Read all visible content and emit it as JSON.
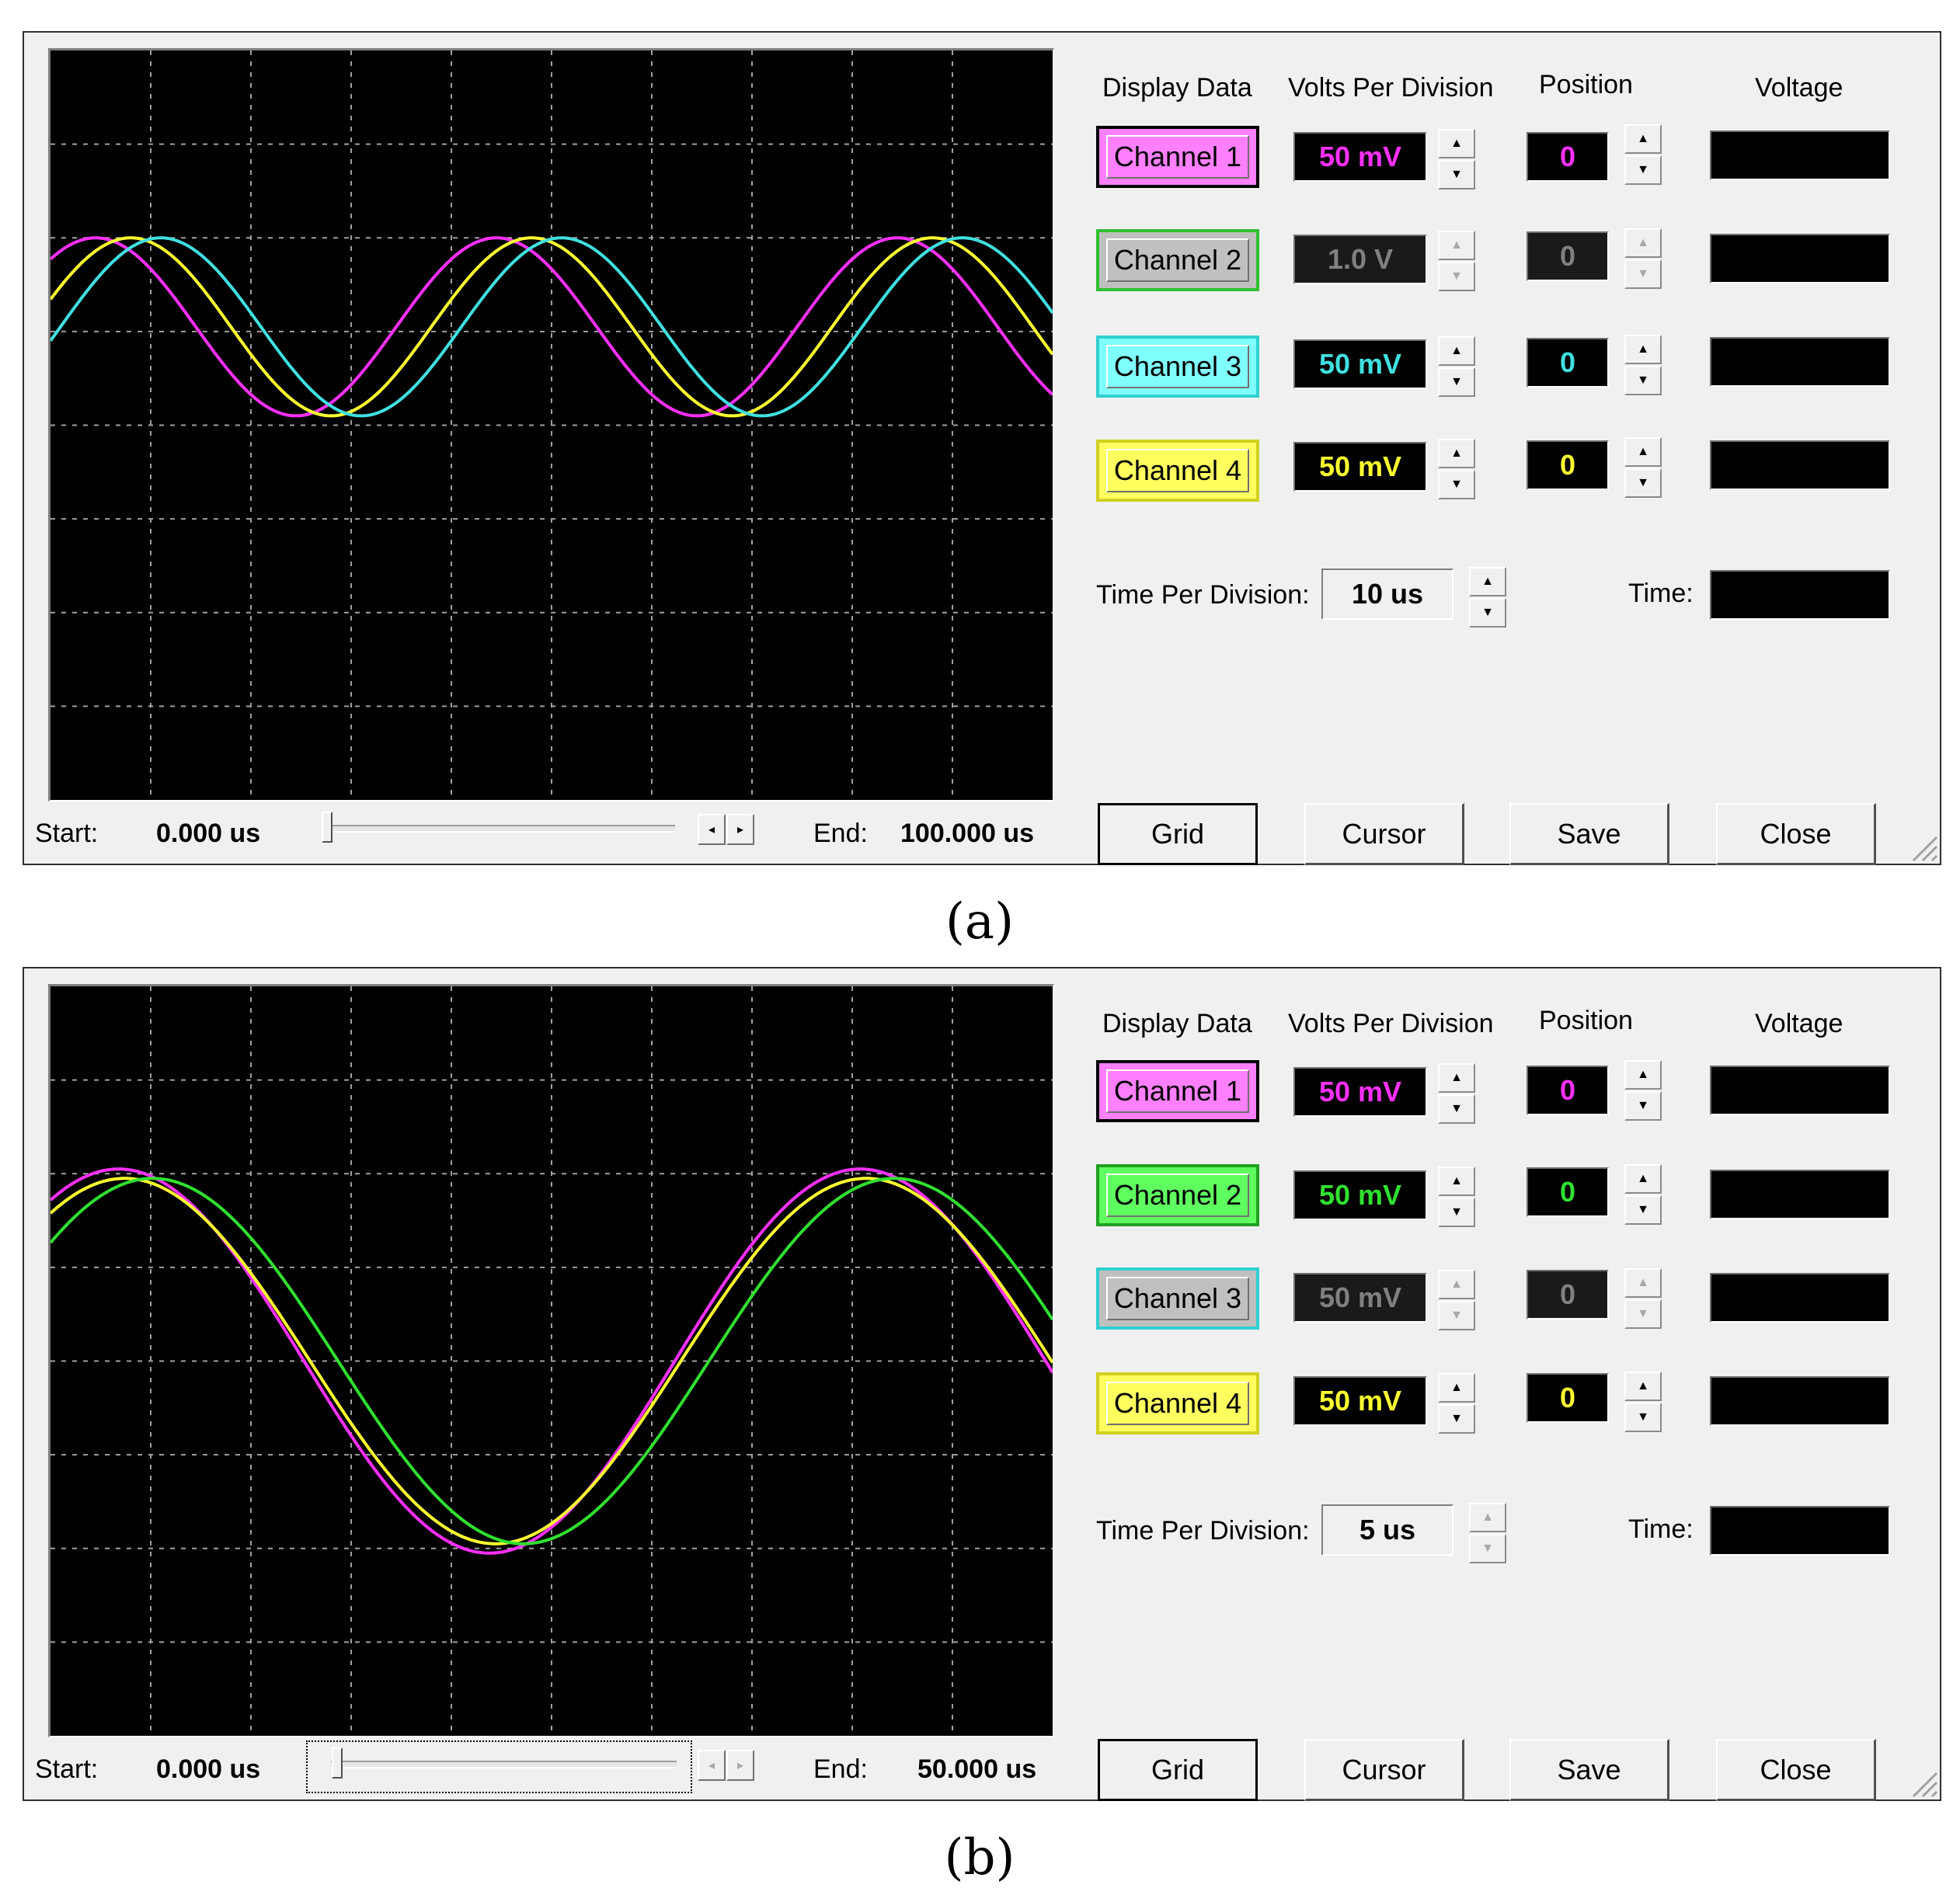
{
  "panels": [
    {
      "caption": "(a)",
      "headers": {
        "display": "Display Data",
        "vpd": "Volts Per Division",
        "position": "Position",
        "voltage": "Voltage"
      },
      "channels": [
        {
          "label": "Channel 1",
          "vpd": "50 mV",
          "position": "0",
          "enabled": true,
          "color": "#ff30ff",
          "btn_bg": "#ff80ff"
        },
        {
          "label": "Channel 2",
          "vpd": "1.0 V",
          "position": "0",
          "enabled": false,
          "color": "#30e030",
          "btn_bg": "#c0c0c0"
        },
        {
          "label": "Channel 3",
          "vpd": "50 mV",
          "position": "0",
          "enabled": true,
          "color": "#40e0e0",
          "btn_bg": "#80ffff"
        },
        {
          "label": "Channel 4",
          "vpd": "50 mV",
          "position": "0",
          "enabled": true,
          "color": "#ffff30",
          "btn_bg": "#ffff60"
        }
      ],
      "time_per_division_label": "Time Per Division:",
      "time_per_division": "10 us",
      "time_label": "Time:",
      "start_label": "Start:",
      "start_value": "0.000 us",
      "end_label": "End:",
      "end_value": "100.000 us",
      "buttons": [
        "Grid",
        "Cursor",
        "Save",
        "Close"
      ]
    },
    {
      "caption": "(b)",
      "headers": {
        "display": "Display Data",
        "vpd": "Volts Per Division",
        "position": "Position",
        "voltage": "Voltage"
      },
      "channels": [
        {
          "label": "Channel 1",
          "vpd": "50 mV",
          "position": "0",
          "enabled": true,
          "color": "#ff30ff",
          "btn_bg": "#ff80ff"
        },
        {
          "label": "Channel 2",
          "vpd": "50 mV",
          "position": "0",
          "enabled": true,
          "color": "#30e030",
          "btn_bg": "#60ff60"
        },
        {
          "label": "Channel 3",
          "vpd": "50 mV",
          "position": "0",
          "enabled": false,
          "color": "#40e0e0",
          "btn_bg": "#c0c0c0"
        },
        {
          "label": "Channel 4",
          "vpd": "50 mV",
          "position": "0",
          "enabled": true,
          "color": "#ffff30",
          "btn_bg": "#ffff60"
        }
      ],
      "time_per_division_label": "Time Per Division:",
      "time_per_division": "5 us",
      "time_label": "Time:",
      "start_label": "Start:",
      "start_value": "0.000 us",
      "end_label": "End:",
      "end_value": "50.000 us",
      "buttons": [
        "Grid",
        "Cursor",
        "Save",
        "Close"
      ]
    }
  ],
  "chart_data": [
    {
      "type": "line",
      "title": "",
      "grid": true,
      "x_unit": "us",
      "xlim": [
        0,
        100
      ],
      "ylim": [
        -4,
        4
      ],
      "series": [
        {
          "trace": "Channel 1",
          "color": "#ff30ff",
          "amplitude": 0.95,
          "center": 1.05,
          "period": 40,
          "phase_us": 0.5
        },
        {
          "trace": "Channel 4",
          "color": "#ffff30",
          "amplitude": 0.95,
          "center": 1.05,
          "period": 40,
          "phase_us": 4.0
        },
        {
          "trace": "Channel 3",
          "color": "#40e0e0",
          "amplitude": 0.95,
          "center": 1.05,
          "period": 40,
          "phase_us": 7.0
        }
      ]
    },
    {
      "type": "line",
      "title": "",
      "grid": true,
      "x_unit": "us",
      "xlim": [
        0,
        50
      ],
      "ylim": [
        -4,
        4
      ],
      "series": [
        {
          "trace": "Channel 1",
          "color": "#ff30ff",
          "amplitude": 2.05,
          "center": 0.0,
          "period": 37,
          "phase_us": -0.3
        },
        {
          "trace": "Channel 4",
          "color": "#ffff30",
          "amplitude": 1.95,
          "center": 0.0,
          "period": 37,
          "phase_us": 0.0
        },
        {
          "trace": "Channel 2",
          "color": "#30e030",
          "amplitude": 1.95,
          "center": 0.0,
          "period": 37,
          "phase_us": 1.4
        }
      ]
    }
  ]
}
